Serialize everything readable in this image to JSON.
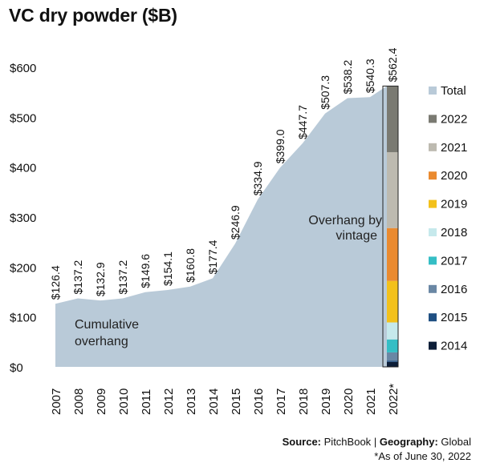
{
  "title": "VC dry powder ($B)",
  "footer": {
    "source_label": "Source:",
    "source_value": "PitchBook",
    "separator": "|",
    "geo_label": "Geography:",
    "geo_value": "Global",
    "note": "*As of June 30, 2022"
  },
  "chart_data": {
    "type": "area",
    "title": "VC dry powder ($B)",
    "x": [
      "2007",
      "2008",
      "2009",
      "2010",
      "2011",
      "2012",
      "2013",
      "2014",
      "2015",
      "2016",
      "2017",
      "2018",
      "2019",
      "2020",
      "2021",
      "2022*"
    ],
    "ylim": [
      0,
      600
    ],
    "yticks": [
      0,
      100,
      200,
      300,
      400,
      500,
      600
    ],
    "ytick_labels": [
      "$0",
      "$100",
      "$200",
      "$300",
      "$400",
      "$500",
      "$600"
    ],
    "series": [
      {
        "name": "Total",
        "values": [
          126.4,
          137.2,
          132.9,
          137.2,
          149.6,
          154.1,
          160.8,
          177.4,
          246.9,
          334.9,
          399.0,
          447.7,
          507.3,
          538.2,
          540.3,
          562.4
        ],
        "labels": [
          "$126.4",
          "$137.2",
          "$132.9",
          "$137.2",
          "$149.6",
          "$154.1",
          "$160.8",
          "$177.4",
          "$246.9",
          "$334.9",
          "$399.0",
          "$447.7",
          "$507.3",
          "$538.2",
          "$540.3",
          "$562.4"
        ]
      }
    ],
    "stack_2022": {
      "segments": [
        {
          "name": "2014",
          "value": 10
        },
        {
          "name": "2015",
          "value": 2
        },
        {
          "name": "2016",
          "value": 17
        },
        {
          "name": "2017",
          "value": 26
        },
        {
          "name": "2018",
          "value": 34
        },
        {
          "name": "2019",
          "value": 83
        },
        {
          "name": "2020",
          "value": 106
        },
        {
          "name": "2021",
          "value": 152
        },
        {
          "name": "2022",
          "value": 132
        }
      ]
    },
    "annotations": [
      "Cumulative overhang",
      "Overhang by vintage"
    ],
    "grid": false,
    "legend_position": "right",
    "legend": [
      {
        "name": "Total",
        "color": "#b9cad8"
      },
      {
        "name": "2022",
        "color": "#7a7a72"
      },
      {
        "name": "2021",
        "color": "#bdbab0"
      },
      {
        "name": "2020",
        "color": "#ea8a2f"
      },
      {
        "name": "2019",
        "color": "#f3c11b"
      },
      {
        "name": "2018",
        "color": "#c6e9ec"
      },
      {
        "name": "2017",
        "color": "#35bec5"
      },
      {
        "name": "2016",
        "color": "#6a87a4"
      },
      {
        "name": "2015",
        "color": "#1f4f82"
      },
      {
        "name": "2014",
        "color": "#0d1e38"
      }
    ],
    "colors": {
      "area": "#b9cad8",
      "2014": "#0d1e38",
      "2015": "#1f4f82",
      "2016": "#6a87a4",
      "2017": "#35bec5",
      "2018": "#c6e9ec",
      "2019": "#f3c11b",
      "2020": "#ea8a2f",
      "2021": "#bdbab0",
      "2022": "#7a7a72"
    }
  }
}
